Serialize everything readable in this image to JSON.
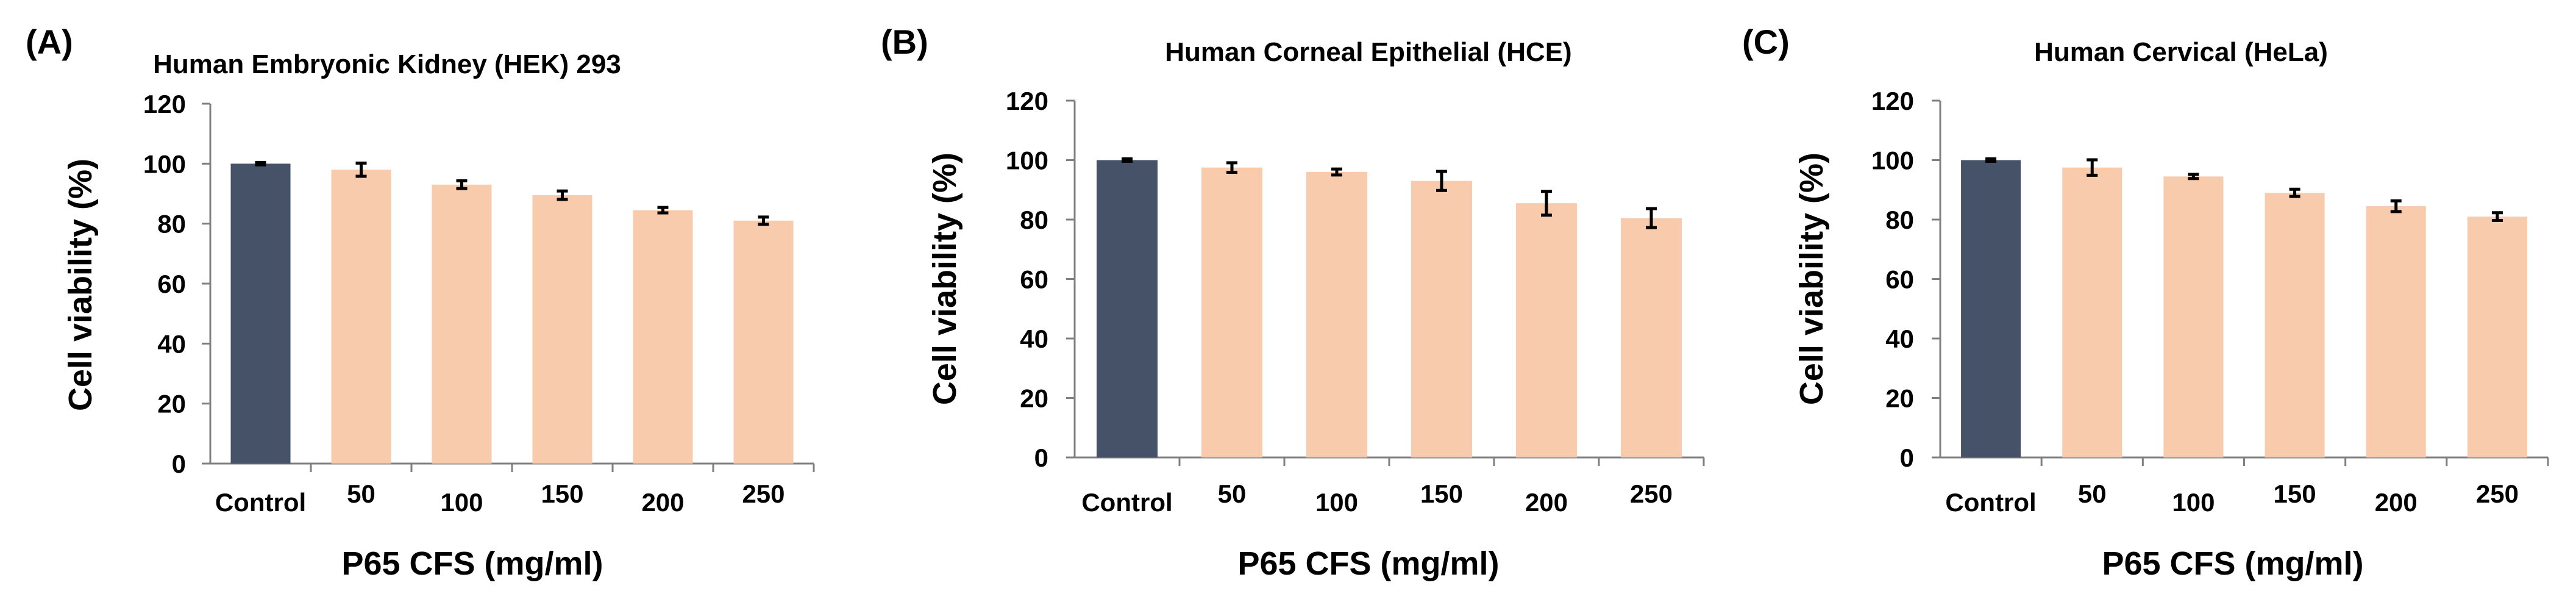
{
  "colors": {
    "control": "#465267",
    "treatment": "#f8cbad"
  },
  "chart_data": [
    {
      "panel": "(A)",
      "type": "bar",
      "title": "Human Embryonic Kidney (HEK) 293",
      "xlabel": "P65 CFS (mg/ml)",
      "ylabel": "Cell viability (%)",
      "ylim": [
        0,
        120
      ],
      "yticks": [
        "0",
        "20",
        "40",
        "60",
        "80",
        "100",
        "120"
      ],
      "categories": [
        "Control",
        "50",
        "100",
        "150",
        "200",
        "250"
      ],
      "values": [
        100,
        98,
        93,
        89.5,
        84.5,
        81
      ],
      "errors": [
        0.4,
        2.2,
        1.3,
        1.4,
        0.9,
        1.2
      ]
    },
    {
      "panel": "(B)",
      "type": "bar",
      "title": "Human Corneal Epithelial (HCE)",
      "xlabel": "P65 CFS (mg/ml)",
      "ylabel": "Cell viability (%)",
      "ylim": [
        0,
        120
      ],
      "yticks": [
        "0",
        "20",
        "40",
        "60",
        "80",
        "100",
        "120"
      ],
      "categories": [
        "Control",
        "50",
        "100",
        "150",
        "200",
        "250"
      ],
      "values": [
        100,
        97.5,
        96,
        93,
        85.5,
        80.5
      ],
      "errors": [
        0.4,
        1.6,
        1.0,
        3.2,
        4.0,
        3.2
      ]
    },
    {
      "panel": "(C)",
      "type": "bar",
      "title": "Human Cervical (HeLa)",
      "xlabel": "P65 CFS (mg/ml)",
      "ylabel": "Cell viability (%)",
      "ylim": [
        0,
        120
      ],
      "yticks": [
        "0",
        "20",
        "40",
        "60",
        "80",
        "100",
        "120"
      ],
      "categories": [
        "Control",
        "50",
        "100",
        "150",
        "200",
        "250"
      ],
      "values": [
        100,
        97.5,
        94.5,
        89,
        84.5,
        81
      ],
      "errors": [
        0.4,
        2.6,
        0.7,
        1.2,
        1.8,
        1.3
      ]
    }
  ]
}
